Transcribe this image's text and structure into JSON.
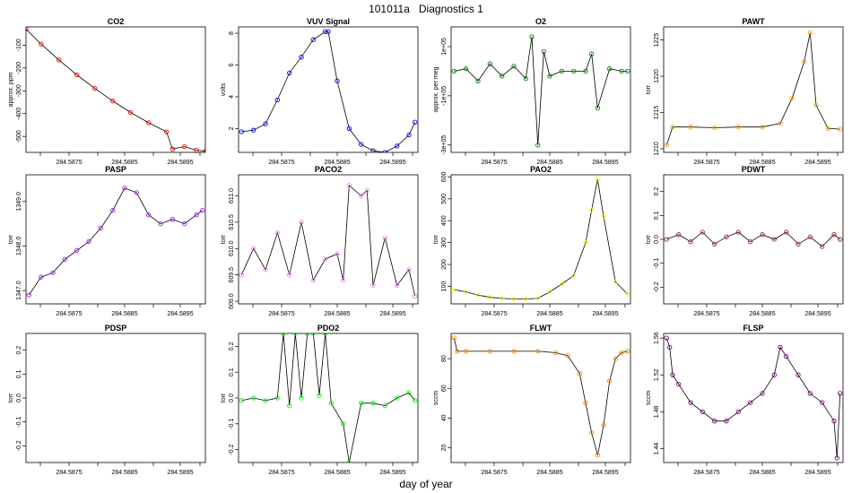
{
  "figure": {
    "title": "101011a   Diagnostics 1",
    "xlabel": "day of year"
  },
  "colors": {
    "line": "#000000",
    "CO2": "#ff0000",
    "VUV": "#0000ff",
    "O2": "#008000",
    "PAWT": "#ffa500",
    "PASP": "#a020f0",
    "PACO2": "#ee82ee",
    "PAO2": "#ffff00",
    "PDWT": "#a52a2a",
    "PDSP": "#00ff00",
    "PDO2": "#00ff00",
    "FLWT": "#ff8c00",
    "FLSP": "#800080"
  },
  "chart_data": [
    {
      "type": "line",
      "title": "CO2",
      "ylabel": "approx. ppm",
      "color_key": "CO2",
      "xlim": [
        284.58695,
        284.58995
      ],
      "xticks": [
        "284.5875",
        "284.5885",
        "284.5895"
      ],
      "ylim": [
        -570,
        -20
      ],
      "yticks": [
        "-100",
        "-200",
        "-300",
        "-400",
        "-500"
      ],
      "x": [
        284.58695,
        284.5872,
        284.5875,
        284.5878,
        284.5881,
        284.5884,
        284.5887,
        284.589,
        284.5893,
        284.5894,
        284.5896,
        284.5898,
        284.58995
      ],
      "y": [
        -30,
        -95,
        -165,
        -230,
        -290,
        -345,
        -395,
        -440,
        -480,
        -555,
        -545,
        -560,
        -565
      ]
    },
    {
      "type": "line",
      "title": "VUV Signal",
      "ylabel": "volts",
      "color_key": "VUV",
      "xlim": [
        284.58695,
        284.58995
      ],
      "xticks": [
        "284.5875",
        "284.5885",
        "284.5895"
      ],
      "ylim": [
        0.5,
        8.4
      ],
      "yticks": [
        "2",
        "4",
        "6",
        "8"
      ],
      "x": [
        284.587,
        284.5872,
        284.5874,
        284.5876,
        284.5878,
        284.588,
        284.5882,
        284.5884,
        284.58845,
        284.5886,
        284.5888,
        284.589,
        284.5892,
        284.5894,
        284.5896,
        284.5898,
        284.5899
      ],
      "y": [
        1.8,
        1.9,
        2.3,
        3.8,
        5.5,
        6.5,
        7.6,
        8.1,
        8.1,
        5.0,
        2.0,
        1.0,
        0.6,
        0.5,
        0.9,
        1.6,
        2.4
      ]
    },
    {
      "type": "line",
      "title": "O2",
      "ylabel": "approx. per meg",
      "color_key": "O2",
      "xlim": [
        284.58695,
        284.58995
      ],
      "xticks": [
        "284.5875",
        "284.5885",
        "284.5895"
      ],
      "ylim": [
        -330000,
        180000
      ],
      "yticks": [
        "1e+05",
        "-1e+05",
        "-3e+05"
      ],
      "x": [
        284.587,
        284.5872,
        284.5874,
        284.5876,
        284.5878,
        284.588,
        284.5882,
        284.5883,
        284.5884,
        284.5885,
        284.5886,
        284.5888,
        284.589,
        284.5892,
        284.5893,
        284.5894,
        284.5896,
        284.5898,
        284.5899
      ],
      "y": [
        0,
        10000,
        -40000,
        30000,
        -20000,
        20000,
        -30000,
        140000,
        -300000,
        80000,
        -20000,
        0,
        0,
        0,
        70000,
        -150000,
        10000,
        0,
        0
      ]
    },
    {
      "type": "line",
      "title": "PAWT",
      "ylabel": "torr",
      "color_key": "PAWT",
      "xlim": [
        284.58695,
        284.58995
      ],
      "xticks": [
        "284.5875",
        "284.5885",
        "284.5895"
      ],
      "ylim": [
        1209.5,
        1226.8
      ],
      "yticks": [
        "1210",
        "1215",
        "1220",
        "1225"
      ],
      "x": [
        284.587,
        284.5871,
        284.5874,
        284.5878,
        284.5882,
        284.5886,
        284.5889,
        284.5891,
        284.5893,
        284.5894,
        284.5895,
        284.5897,
        284.5899
      ],
      "y": [
        1210.5,
        1213,
        1213,
        1212.9,
        1213,
        1213,
        1213.5,
        1217,
        1222,
        1226,
        1216,
        1212.8,
        1212.7
      ]
    },
    {
      "type": "line",
      "title": "PASP",
      "ylabel": "torr",
      "color_key": "PASP",
      "xlim": [
        284.58695,
        284.58995
      ],
      "xticks": [
        "284.5875",
        "284.5885",
        "284.5895"
      ],
      "ylim": [
        1346.7,
        1349.6
      ],
      "yticks": [
        "1347.0",
        "1348.0",
        "1349.0"
      ],
      "x": [
        284.587,
        284.5872,
        284.5874,
        284.5876,
        284.5878,
        284.588,
        284.5882,
        284.5884,
        284.5886,
        284.5888,
        284.589,
        284.5892,
        284.5894,
        284.5896,
        284.5898,
        284.5899
      ],
      "y": [
        1346.9,
        1347.3,
        1347.4,
        1347.7,
        1347.9,
        1348.1,
        1348.4,
        1348.8,
        1349.3,
        1349.2,
        1348.7,
        1348.5,
        1348.6,
        1348.5,
        1348.7,
        1348.8
      ]
    },
    {
      "type": "line",
      "title": "PACO2",
      "ylabel": "torr",
      "color_key": "PACO2",
      "xlim": [
        284.58695,
        284.58995
      ],
      "xticks": [
        "284.5875",
        "284.5885",
        "284.5895"
      ],
      "ylim": [
        608.95,
        611.4
      ],
      "yticks": [
        "609.0",
        "609.5",
        "610.0",
        "610.5",
        "611.0"
      ],
      "x": [
        284.587,
        284.5872,
        284.5874,
        284.5876,
        284.5878,
        284.588,
        284.5882,
        284.5884,
        284.5886,
        284.5887,
        284.5888,
        284.589,
        284.5891,
        284.5892,
        284.5894,
        284.5896,
        284.5898,
        284.5899
      ],
      "y": [
        609.5,
        610.0,
        609.6,
        610.3,
        609.5,
        610.5,
        609.4,
        609.8,
        609.9,
        609.4,
        611.2,
        611.0,
        611.1,
        609.3,
        610.2,
        609.3,
        609.6,
        609.1
      ]
    },
    {
      "type": "line",
      "title": "PAO2",
      "ylabel": "torr",
      "color_key": "PAO2",
      "xlim": [
        284.58695,
        284.58995
      ],
      "xticks": [
        "284.5875",
        "284.5885",
        "284.5895"
      ],
      "ylim": [
        20,
        610
      ],
      "yticks": [
        "100",
        "200",
        "300",
        "400",
        "500",
        "600"
      ],
      "x": [
        284.587,
        284.5872,
        284.5874,
        284.5876,
        284.5878,
        284.588,
        284.5882,
        284.5884,
        284.5886,
        284.5888,
        284.589,
        284.5892,
        284.5893,
        284.5894,
        284.5895,
        284.5897,
        284.5899
      ],
      "y": [
        85,
        75,
        60,
        50,
        45,
        42,
        42,
        45,
        75,
        110,
        150,
        300,
        450,
        590,
        420,
        120,
        65
      ]
    },
    {
      "type": "line",
      "title": "PDWT",
      "ylabel": "torr",
      "color_key": "PDWT",
      "xlim": [
        284.58695,
        284.58995
      ],
      "xticks": [
        "284.5875",
        "284.5885",
        "284.5895"
      ],
      "ylim": [
        -0.27,
        0.27
      ],
      "yticks": [
        "-0.2",
        "-0.1",
        "0.0",
        "0.1",
        "0.2"
      ],
      "x": [
        284.587,
        284.5872,
        284.5874,
        284.5876,
        284.5878,
        284.588,
        284.5882,
        284.5884,
        284.5886,
        284.5888,
        284.589,
        284.5892,
        284.5894,
        284.5896,
        284.5898,
        284.5899
      ],
      "y": [
        0.0,
        0.02,
        -0.01,
        0.03,
        -0.02,
        0.01,
        0.03,
        -0.01,
        0.02,
        0.0,
        0.03,
        -0.02,
        0.01,
        -0.03,
        0.02,
        0.0
      ]
    },
    {
      "type": "line",
      "title": "PDSP",
      "ylabel": "torr",
      "color_key": "PDSP",
      "xlim": [
        284.58695,
        284.58995
      ],
      "xticks": [
        "284.5875",
        "284.5885",
        "284.5895"
      ],
      "ylim": [
        -0.27,
        0.27
      ],
      "yticks": [
        "-0.2",
        "-0.1",
        "0.0",
        "0.1",
        "0.2"
      ],
      "x": [],
      "y": []
    },
    {
      "type": "line",
      "title": "PDO2",
      "ylabel": "torr",
      "color_key": "PDO2",
      "xlim": [
        284.58695,
        284.58995
      ],
      "xticks": [
        "284.5875",
        "284.5885",
        "284.5895"
      ],
      "ylim": [
        -0.25,
        0.25
      ],
      "yticks": [
        "-0.2",
        "-0.1",
        "0.0",
        "0.1",
        "0.2"
      ],
      "x": [
        284.587,
        284.5872,
        284.5874,
        284.5876,
        284.5877,
        284.5878,
        284.5879,
        284.588,
        284.5881,
        284.5882,
        284.5883,
        284.5884,
        284.5885,
        284.5887,
        284.5888,
        284.589,
        284.5892,
        284.5894,
        284.5896,
        284.5898,
        284.5899
      ],
      "y": [
        -0.01,
        0.0,
        -0.01,
        0.0,
        0.25,
        -0.03,
        0.25,
        0.0,
        0.25,
        0.25,
        0.01,
        0.25,
        -0.02,
        -0.1,
        -0.25,
        -0.02,
        -0.02,
        -0.03,
        0.0,
        0.02,
        -0.01
      ]
    },
    {
      "type": "line",
      "title": "FLWT",
      "ylabel": "sccm",
      "color_key": "FLWT",
      "xlim": [
        284.58695,
        284.58995
      ],
      "xticks": [
        "284.5875",
        "284.5885",
        "284.5895"
      ],
      "ylim": [
        10,
        97
      ],
      "yticks": [
        "20",
        "40",
        "60",
        "80"
      ],
      "x": [
        284.587,
        284.58705,
        284.5872,
        284.5876,
        284.588,
        284.5884,
        284.5887,
        284.5889,
        284.5891,
        284.5892,
        284.5893,
        284.5894,
        284.5895,
        284.5896,
        284.5897,
        284.5898,
        284.5899
      ],
      "y": [
        94,
        85,
        85,
        85,
        85,
        85,
        84,
        82,
        70,
        50,
        30,
        15,
        35,
        65,
        80,
        84,
        85
      ]
    },
    {
      "type": "line",
      "title": "FLSP",
      "ylabel": "sccm",
      "color_key": "FLSP",
      "xlim": [
        284.58695,
        284.58995
      ],
      "xticks": [
        "284.5875",
        "284.5885",
        "284.5895"
      ],
      "ylim": [
        1.425,
        1.565
      ],
      "yticks": [
        "1.44",
        "1.48",
        "1.52",
        "1.56"
      ],
      "x": [
        284.587,
        284.58705,
        284.5871,
        284.5872,
        284.5874,
        284.5876,
        284.5878,
        284.588,
        284.5882,
        284.5884,
        284.5886,
        284.5888,
        284.5889,
        284.589,
        284.5892,
        284.5894,
        284.5896,
        284.5898,
        284.58985,
        284.5899
      ],
      "y": [
        1.56,
        1.55,
        1.52,
        1.51,
        1.49,
        1.48,
        1.47,
        1.47,
        1.48,
        1.49,
        1.5,
        1.52,
        1.55,
        1.54,
        1.52,
        1.5,
        1.49,
        1.47,
        1.43,
        1.5
      ]
    }
  ]
}
